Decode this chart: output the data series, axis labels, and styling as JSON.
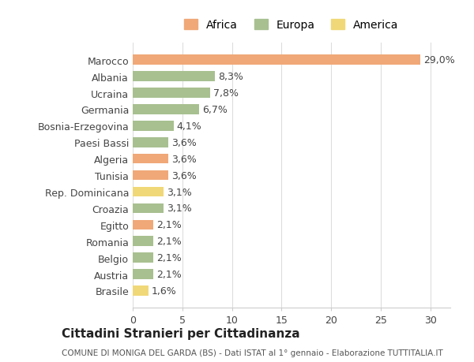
{
  "categories": [
    "Marocco",
    "Albania",
    "Ucraina",
    "Germania",
    "Bosnia-Erzegovina",
    "Paesi Bassi",
    "Algeria",
    "Tunisia",
    "Rep. Dominicana",
    "Croazia",
    "Egitto",
    "Romania",
    "Belgio",
    "Austria",
    "Brasile"
  ],
  "values": [
    29.0,
    8.3,
    7.8,
    6.7,
    4.1,
    3.6,
    3.6,
    3.6,
    3.1,
    3.1,
    2.1,
    2.1,
    2.1,
    2.1,
    1.6
  ],
  "labels": [
    "29,0%",
    "8,3%",
    "7,8%",
    "6,7%",
    "4,1%",
    "3,6%",
    "3,6%",
    "3,6%",
    "3,1%",
    "3,1%",
    "2,1%",
    "2,1%",
    "2,1%",
    "2,1%",
    "1,6%"
  ],
  "continents": [
    "Africa",
    "Europa",
    "Europa",
    "Europa",
    "Europa",
    "Europa",
    "Africa",
    "Africa",
    "America",
    "Europa",
    "Africa",
    "Europa",
    "Europa",
    "Europa",
    "America"
  ],
  "colors": {
    "Africa": "#F0A878",
    "Europa": "#A8C090",
    "America": "#F0D878"
  },
  "legend": {
    "Africa": "#F0A878",
    "Europa": "#A8C090",
    "America": "#F0D878"
  },
  "title": "Cittadini Stranieri per Cittadinanza",
  "subtitle": "COMUNE DI MONIGA DEL GARDA (BS) - Dati ISTAT al 1° gennaio - Elaborazione TUTTITALIA.IT",
  "xlim": [
    0,
    32
  ],
  "xticks": [
    0,
    5,
    10,
    15,
    20,
    25,
    30
  ],
  "background_color": "#ffffff",
  "bar_height": 0.6,
  "label_fontsize": 9,
  "tick_fontsize": 9
}
